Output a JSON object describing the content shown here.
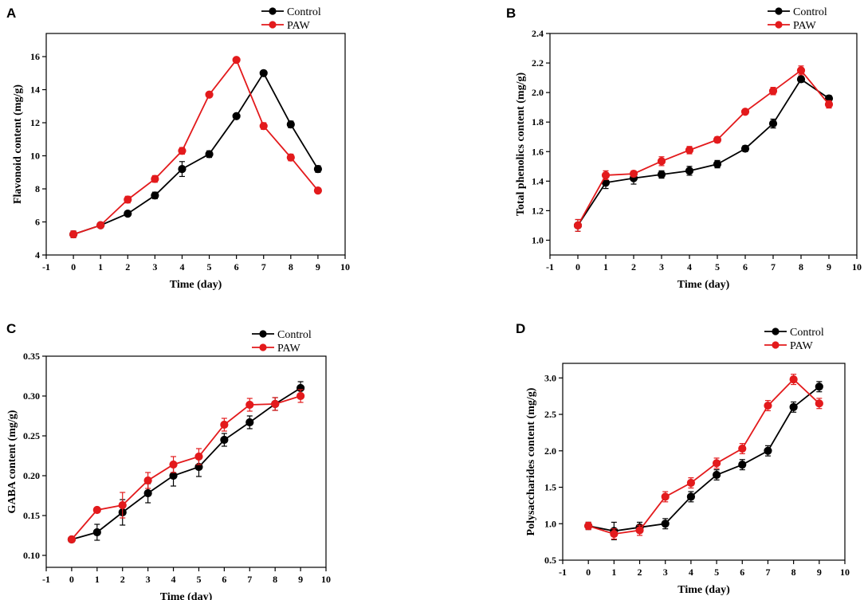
{
  "colors": {
    "control": "#000000",
    "paw": "#e31a1c",
    "axis": "#000000"
  },
  "chart_data": [
    {
      "panel": "A",
      "type": "line",
      "xlabel": "Time (day)",
      "ylabel": "Flavonoid content (mg/g)",
      "xlim": [
        -1,
        10
      ],
      "ylim": [
        4,
        17.4
      ],
      "xticks": [
        -1,
        0,
        1,
        2,
        3,
        4,
        5,
        6,
        7,
        8,
        9,
        10
      ],
      "yticks": [
        4,
        6,
        8,
        10,
        12,
        14,
        16
      ],
      "legend": "top-right",
      "x": [
        0,
        1,
        2,
        3,
        4,
        5,
        6,
        7,
        8,
        9
      ],
      "series": [
        {
          "name": "Control",
          "color_key": "control",
          "values": [
            5.25,
            5.8,
            6.5,
            7.6,
            9.2,
            10.1,
            12.4,
            15.0,
            11.9,
            9.2
          ],
          "errors": [
            0.2,
            0.15,
            0.15,
            0.2,
            0.45,
            0.2,
            0.15,
            0.15,
            0.2,
            0.2
          ]
        },
        {
          "name": "PAW",
          "color_key": "paw",
          "values": [
            5.25,
            5.8,
            7.35,
            8.6,
            10.3,
            13.7,
            15.8,
            11.8,
            9.9,
            7.9
          ],
          "errors": [
            0.2,
            0.15,
            0.2,
            0.2,
            0.2,
            0.15,
            0.15,
            0.2,
            0.2,
            0.15
          ]
        }
      ]
    },
    {
      "panel": "B",
      "type": "line",
      "xlabel": "Time (day)",
      "ylabel": "Total phenolics content (mg/g)",
      "xlim": [
        -1,
        10
      ],
      "ylim": [
        0.9,
        2.4
      ],
      "xticks": [
        -1,
        0,
        1,
        2,
        3,
        4,
        5,
        6,
        7,
        8,
        9,
        10
      ],
      "yticks": [
        1.0,
        1.2,
        1.4,
        1.6,
        1.8,
        2.0,
        2.2,
        2.4
      ],
      "ytick_decimals": 1,
      "legend": "top-right",
      "x": [
        0,
        1,
        2,
        3,
        4,
        5,
        6,
        7,
        8,
        9
      ],
      "series": [
        {
          "name": "Control",
          "color_key": "control",
          "values": [
            1.1,
            1.39,
            1.42,
            1.445,
            1.47,
            1.515,
            1.62,
            1.79,
            2.09,
            1.96
          ],
          "errors": [
            0.04,
            0.04,
            0.04,
            0.025,
            0.03,
            0.025,
            0.02,
            0.03,
            0.02,
            0.02
          ]
        },
        {
          "name": "PAW",
          "color_key": "paw",
          "values": [
            1.1,
            1.44,
            1.45,
            1.535,
            1.61,
            1.68,
            1.87,
            2.01,
            2.15,
            1.92
          ],
          "errors": [
            0.04,
            0.03,
            0.02,
            0.03,
            0.025,
            0.02,
            0.015,
            0.025,
            0.03,
            0.025
          ]
        }
      ]
    },
    {
      "panel": "C",
      "type": "line",
      "xlabel": "Time (day)",
      "ylabel": "GABA content (mg/g)",
      "xlim": [
        -1,
        10
      ],
      "ylim": [
        0.085,
        0.35
      ],
      "xticks": [
        -1,
        0,
        1,
        2,
        3,
        4,
        5,
        6,
        7,
        8,
        9,
        10
      ],
      "yticks": [
        0.1,
        0.15,
        0.2,
        0.25,
        0.3,
        0.35
      ],
      "ytick_decimals": 2,
      "legend": "top-right",
      "x": [
        0,
        1,
        2,
        3,
        4,
        5,
        6,
        7,
        8,
        9
      ],
      "series": [
        {
          "name": "Control",
          "color_key": "control",
          "values": [
            0.12,
            0.129,
            0.154,
            0.178,
            0.2,
            0.211,
            0.245,
            0.267,
            0.29,
            0.31
          ],
          "errors": [
            0.003,
            0.01,
            0.016,
            0.012,
            0.013,
            0.012,
            0.008,
            0.008,
            0.008,
            0.008
          ]
        },
        {
          "name": "PAW",
          "color_key": "paw",
          "values": [
            0.12,
            0.157,
            0.163,
            0.194,
            0.214,
            0.224,
            0.264,
            0.289,
            0.29,
            0.3
          ],
          "errors": [
            0.003,
            0.003,
            0.016,
            0.01,
            0.01,
            0.01,
            0.008,
            0.008,
            0.008,
            0.008
          ]
        }
      ]
    },
    {
      "panel": "D",
      "type": "line",
      "xlabel": "Time (day)",
      "ylabel": "Polysaccharides content (mg/g)",
      "xlim": [
        -1,
        10
      ],
      "ylim": [
        0.5,
        3.2
      ],
      "xticks": [
        -1,
        0,
        1,
        2,
        3,
        4,
        5,
        6,
        7,
        8,
        9,
        10
      ],
      "yticks": [
        0.5,
        1.0,
        1.5,
        2.0,
        2.5,
        3.0
      ],
      "ytick_decimals": 1,
      "legend": "top-right",
      "x": [
        0,
        1,
        2,
        3,
        4,
        5,
        6,
        7,
        8,
        9
      ],
      "series": [
        {
          "name": "Control",
          "color_key": "control",
          "values": [
            0.97,
            0.9,
            0.95,
            1.0,
            1.37,
            1.67,
            1.81,
            2.0,
            2.6,
            2.88
          ],
          "errors": [
            0.05,
            0.12,
            0.07,
            0.07,
            0.07,
            0.07,
            0.07,
            0.07,
            0.07,
            0.07
          ]
        },
        {
          "name": "PAW",
          "color_key": "paw",
          "values": [
            0.97,
            0.86,
            0.91,
            1.37,
            1.56,
            1.83,
            2.03,
            2.62,
            2.98,
            2.65
          ],
          "errors": [
            0.05,
            0.07,
            0.07,
            0.07,
            0.07,
            0.07,
            0.07,
            0.07,
            0.07,
            0.07
          ]
        }
      ]
    }
  ]
}
